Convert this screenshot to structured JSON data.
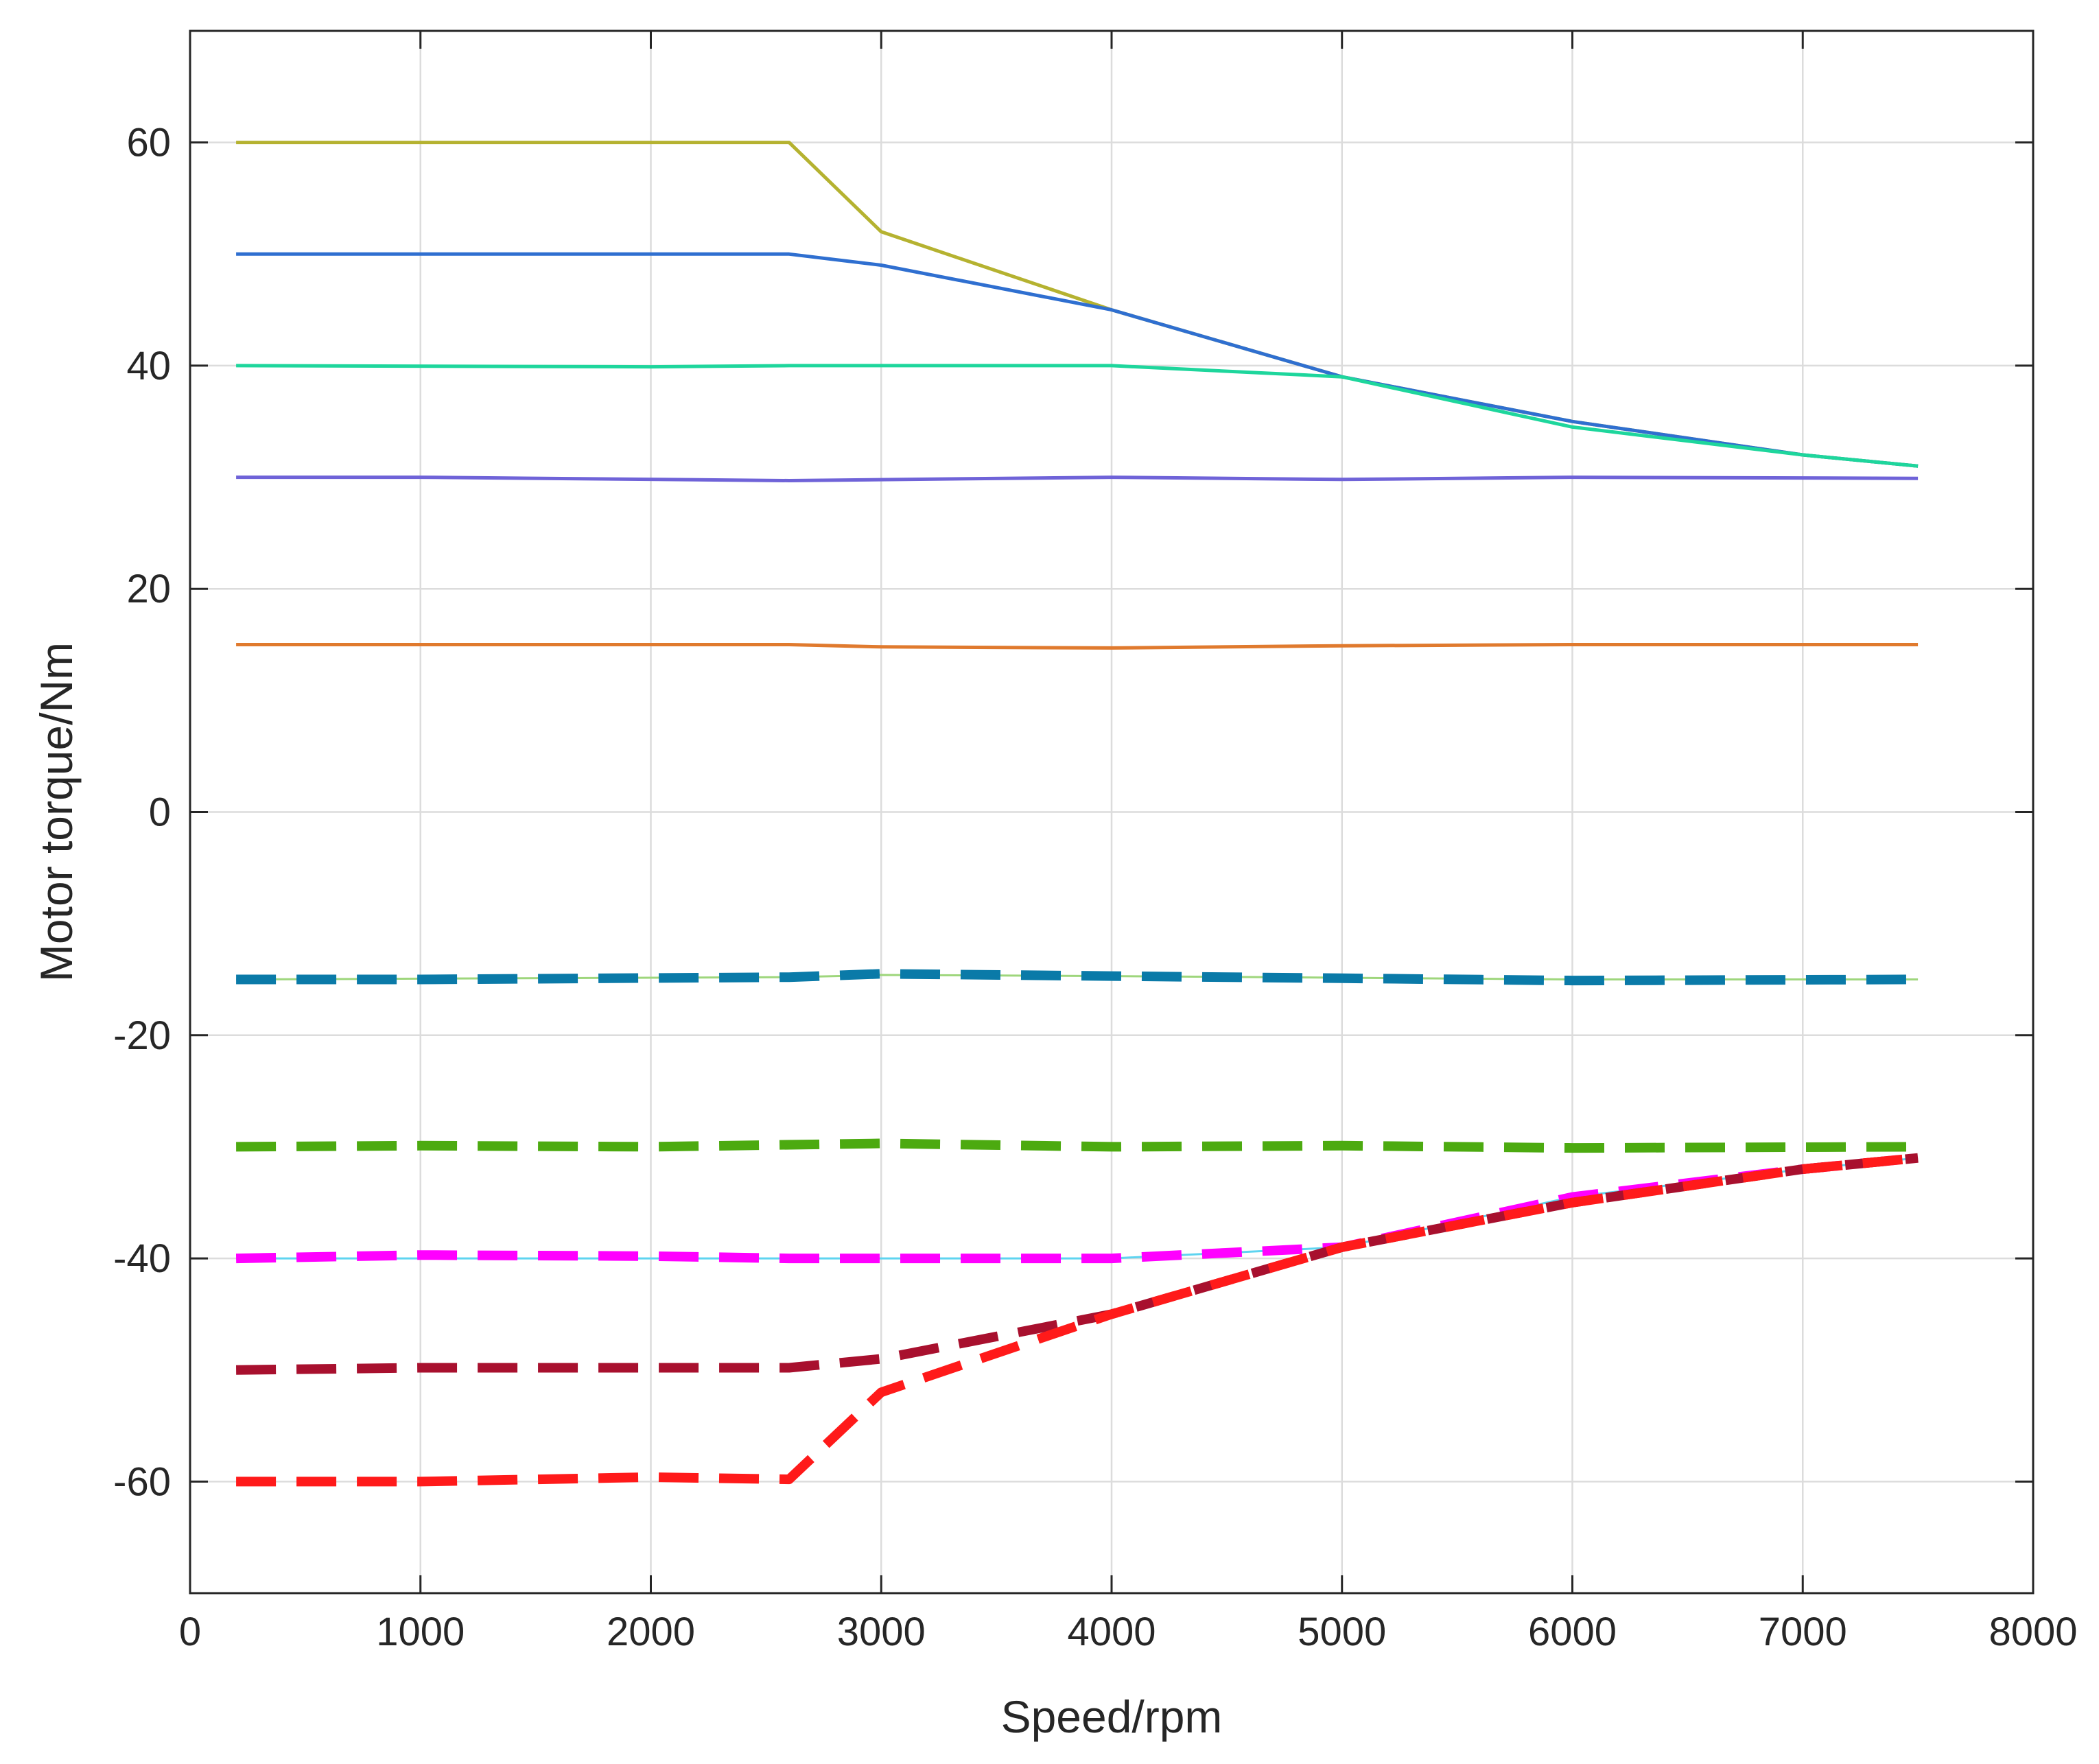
{
  "chart_data": {
    "type": "line",
    "title": "",
    "xlabel": "Speed/rpm",
    "ylabel": "Motor torque/Nm",
    "xlim": [
      0,
      8000
    ],
    "ylim": [
      -70,
      70
    ],
    "xticks": [
      0,
      1000,
      2000,
      3000,
      4000,
      5000,
      6000,
      7000,
      8000
    ],
    "yticks": [
      -60,
      -40,
      -20,
      0,
      20,
      40,
      60
    ],
    "xtick_labels": [
      "0",
      "1000",
      "2000",
      "3000",
      "4000",
      "5000",
      "6000",
      "7000",
      "8000"
    ],
    "ytick_labels": [
      "-60",
      "-40",
      "-20",
      "0",
      "20",
      "40",
      "60"
    ],
    "grid": true,
    "legend": "none",
    "series": [
      {
        "color": "#b5b230",
        "style": "solid",
        "width": 5,
        "x": [
          200,
          2600,
          3000,
          4000,
          5000,
          6000,
          7000,
          7500
        ],
        "y": [
          60,
          60,
          52,
          45,
          39,
          35,
          32,
          31
        ]
      },
      {
        "color": "#2f6fd0",
        "style": "solid",
        "width": 5,
        "x": [
          200,
          2600,
          3000,
          4000,
          5000,
          6000,
          7000,
          7500
        ],
        "y": [
          50,
          50,
          49,
          45,
          39,
          35,
          32,
          31
        ]
      },
      {
        "color": "#1ed69c",
        "style": "solid",
        "width": 5,
        "x": [
          200,
          2000,
          2600,
          4000,
          5000,
          6000,
          7000,
          7500
        ],
        "y": [
          40,
          39.9,
          40,
          40,
          39,
          34.5,
          32,
          31
        ]
      },
      {
        "color": "#6f63d8",
        "style": "solid",
        "width": 5,
        "x": [
          200,
          1000,
          2600,
          4000,
          5000,
          6000,
          7500
        ],
        "y": [
          30,
          30,
          29.7,
          30,
          29.8,
          30,
          29.9
        ]
      },
      {
        "color": "#e07a2e",
        "style": "solid",
        "width": 5,
        "x": [
          200,
          2600,
          3000,
          4000,
          5000,
          6000,
          7500
        ],
        "y": [
          15,
          15,
          14.8,
          14.7,
          14.9,
          15,
          15
        ]
      },
      {
        "color": "#9ed67c",
        "style": "solid",
        "width": 3,
        "x": [
          200,
          2600,
          3000,
          4000,
          6000,
          7500
        ],
        "y": [
          -15,
          -14.8,
          -14.6,
          -14.7,
          -15,
          -15
        ]
      },
      {
        "color": "#0a7aa8",
        "style": "dashed",
        "width": 14,
        "x": [
          200,
          1000,
          2600,
          3000,
          4000,
          5000,
          6000,
          7500
        ],
        "y": [
          -15,
          -15,
          -14.8,
          -14.5,
          -14.7,
          -14.9,
          -15.1,
          -15
        ]
      },
      {
        "color": "#4caa10",
        "style": "dashed",
        "width": 14,
        "x": [
          200,
          1000,
          2000,
          3000,
          4000,
          5000,
          6000,
          7500
        ],
        "y": [
          -30,
          -29.9,
          -30,
          -29.7,
          -30,
          -29.9,
          -30.1,
          -30
        ]
      },
      {
        "color": "#5ed4f0",
        "style": "solid",
        "width": 3,
        "x": [
          200,
          2600,
          4000,
          5000,
          6000,
          7000,
          7500
        ],
        "y": [
          -40,
          -40,
          -40,
          -39,
          -34.5,
          -32,
          -31
        ]
      },
      {
        "color": "#ff00ff",
        "style": "dashed",
        "width": 14,
        "x": [
          200,
          1000,
          2000,
          2600,
          3000,
          4000,
          5000,
          6000,
          7000,
          7500
        ],
        "y": [
          -40,
          -39.7,
          -39.8,
          -40,
          -40,
          -40,
          -39,
          -34.5,
          -32,
          -31
        ]
      },
      {
        "color": "#a8102e",
        "style": "dashed",
        "width": 14,
        "x": [
          200,
          1000,
          2600,
          3000,
          4000,
          5000,
          6000,
          7000,
          7500
        ],
        "y": [
          -50,
          -49.8,
          -49.8,
          -49,
          -45,
          -39,
          -35,
          -32,
          -31
        ]
      },
      {
        "color": "#ff1a1a",
        "style": "dashed",
        "width": 14,
        "x": [
          200,
          1000,
          2000,
          2600,
          3000,
          4000,
          5000,
          6000,
          7000,
          7500
        ],
        "y": [
          -60,
          -60,
          -59.6,
          -59.8,
          -52,
          -45,
          -39,
          -35,
          -32,
          -31
        ]
      }
    ]
  }
}
